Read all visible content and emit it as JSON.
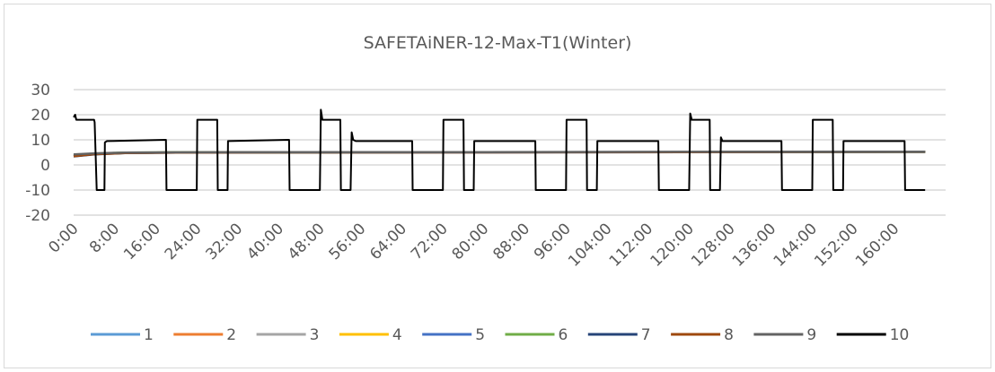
{
  "chart_data": {
    "type": "line",
    "title": "SAFETAiNER-12-Max-T1(Winter)",
    "xlabel": "",
    "ylabel": "",
    "xlim": [
      0,
      170
    ],
    "ylim": [
      -20,
      30
    ],
    "yticks": [
      -20,
      -10,
      0,
      10,
      20,
      30
    ],
    "x_tick_labels": [
      "0:00",
      "8:00",
      "16:00",
      "24:00",
      "32:00",
      "40:00",
      "48:00",
      "56:00",
      "64:00",
      "72:00",
      "80:00",
      "88:00",
      "96:00",
      "104:00",
      "112:00",
      "120:00",
      "128:00",
      "136:00",
      "144:00",
      "152:00",
      "160:00"
    ],
    "x_tick_hours": [
      0,
      8,
      16,
      24,
      32,
      40,
      48,
      56,
      64,
      72,
      80,
      88,
      96,
      104,
      112,
      120,
      128,
      136,
      144,
      152,
      160
    ],
    "grid": true,
    "legend_position": "bottom",
    "series": [
      {
        "name": "1",
        "color": "#5b9bd5",
        "x": [
          0,
          4,
          10,
          20,
          40,
          80,
          120,
          166
        ],
        "y": [
          3.5,
          4.3,
          4.8,
          5.0,
          5.0,
          5.1,
          5.1,
          5.2
        ]
      },
      {
        "name": "2",
        "color": "#ed7d31",
        "x": [
          0,
          4,
          10,
          20,
          40,
          80,
          120,
          166
        ],
        "y": [
          3.8,
          4.4,
          4.8,
          5.0,
          5.0,
          5.1,
          5.1,
          5.2
        ]
      },
      {
        "name": "3",
        "color": "#a5a5a5",
        "x": [
          0,
          4,
          10,
          20,
          40,
          80,
          120,
          166
        ],
        "y": [
          4.0,
          4.5,
          4.9,
          5.0,
          5.1,
          5.1,
          5.2,
          5.2
        ]
      },
      {
        "name": "4",
        "color": "#ffc000",
        "x": [
          0,
          4,
          10,
          20,
          40,
          80,
          120,
          166
        ],
        "y": [
          3.6,
          4.3,
          4.8,
          5.0,
          5.0,
          5.1,
          5.1,
          5.2
        ]
      },
      {
        "name": "5",
        "color": "#4472c4",
        "x": [
          0,
          4,
          10,
          20,
          40,
          80,
          120,
          166
        ],
        "y": [
          3.7,
          4.4,
          4.8,
          5.0,
          5.0,
          5.1,
          5.1,
          5.2
        ]
      },
      {
        "name": "6",
        "color": "#70ad47",
        "x": [
          0,
          4,
          10,
          20,
          40,
          80,
          120,
          166
        ],
        "y": [
          3.9,
          4.5,
          4.9,
          5.0,
          5.0,
          5.1,
          5.1,
          5.2
        ]
      },
      {
        "name": "7",
        "color": "#264478",
        "x": [
          0,
          4,
          10,
          20,
          40,
          80,
          120,
          166
        ],
        "y": [
          3.4,
          4.2,
          4.7,
          4.9,
          5.0,
          5.0,
          5.1,
          5.2
        ]
      },
      {
        "name": "8",
        "color": "#9e480e",
        "x": [
          0,
          4,
          10,
          20,
          40,
          80,
          120,
          166
        ],
        "y": [
          3.5,
          4.3,
          4.7,
          4.9,
          5.0,
          5.0,
          5.1,
          5.2
        ]
      },
      {
        "name": "9",
        "color": "#636363",
        "x": [
          0,
          4,
          10,
          20,
          40,
          80,
          120,
          166
        ],
        "y": [
          4.2,
          4.6,
          4.9,
          5.0,
          5.1,
          5.1,
          5.2,
          5.3
        ]
      },
      {
        "name": "10",
        "color": "#000000",
        "x": [
          0,
          0.3,
          0.5,
          4,
          4.1,
          4.5,
          6,
          6.1,
          6.5,
          18,
          18.1,
          24,
          24.1,
          28,
          28.1,
          30,
          30.1,
          42,
          42.1,
          48,
          48.2,
          48.5,
          52,
          52.1,
          54,
          54.2,
          54.5,
          55,
          66,
          66.1,
          72,
          72.1,
          76,
          76.1,
          78,
          78.1,
          90,
          90.1,
          96,
          96.1,
          100,
          100.1,
          102,
          102.1,
          114,
          114.1,
          120,
          120.2,
          120.5,
          124,
          124.1,
          126,
          126.2,
          126.5,
          138,
          138.1,
          144,
          144.1,
          148,
          148.1,
          150,
          150.1,
          162,
          162.1,
          166
        ],
        "y": [
          19,
          20,
          18,
          18,
          17,
          -10,
          -10,
          9,
          9.5,
          10,
          -10,
          -10,
          18,
          18,
          -10,
          -10,
          9.5,
          10,
          -10,
          -10,
          22,
          18,
          18,
          -10,
          -10,
          13,
          10,
          9.5,
          9.5,
          -10,
          -10,
          18,
          18,
          -10,
          -10,
          9.5,
          9.5,
          -10,
          -10,
          18,
          18,
          -10,
          -10,
          9.5,
          9.5,
          -10,
          -10,
          20.5,
          18,
          18,
          -10,
          -10,
          11,
          9.5,
          9.5,
          -10,
          -10,
          18,
          18,
          -10,
          -10,
          9.5,
          9.5,
          -10,
          -10
        ]
      }
    ]
  }
}
